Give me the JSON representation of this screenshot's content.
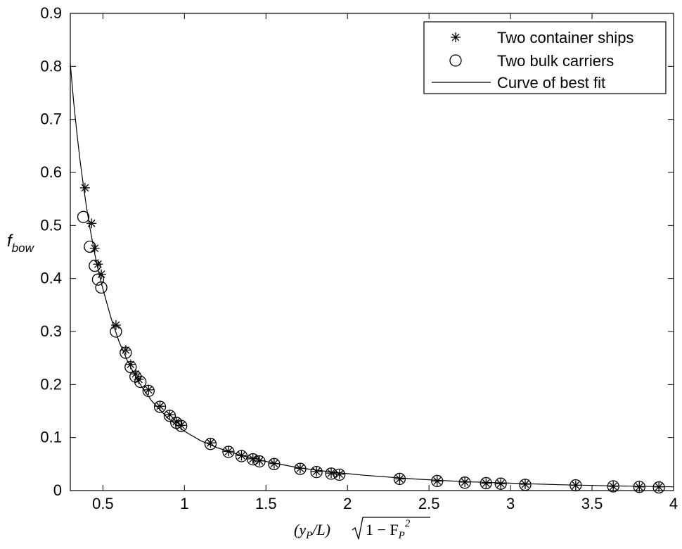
{
  "chart_data": {
    "type": "scatter",
    "title": "",
    "ylabel": {
      "main": "f",
      "sub": "bow"
    },
    "xlabel": {
      "open": "(y",
      "sub": "P",
      "mid": "/L)",
      "root_a": "1 − F",
      "root_sub": "P",
      "root_sup": "2"
    },
    "xlim": [
      0.3,
      4
    ],
    "ylim": [
      0,
      0.9
    ],
    "xticks": [
      0.5,
      1,
      1.5,
      2,
      2.5,
      3,
      3.5,
      4
    ],
    "xtick_labels": [
      "0.5",
      "1",
      "1.5",
      "2",
      "2.5",
      "3",
      "3.5",
      "4"
    ],
    "yticks": [
      0,
      0.1,
      0.2,
      0.3,
      0.4,
      0.5,
      0.6,
      0.7,
      0.8,
      0.9
    ],
    "ytick_labels": [
      "0",
      "0.1",
      "0.2",
      "0.3",
      "0.4",
      "0.5",
      "0.6",
      "0.7",
      "0.8",
      "0.9"
    ],
    "grid": false,
    "legend_position": "top-right",
    "series": [
      {
        "name": "Two container ships",
        "marker": "asterisk",
        "x": [
          0.39,
          0.43,
          0.45,
          0.47,
          0.49,
          0.58,
          0.64,
          0.67,
          0.7,
          0.72,
          0.78,
          0.85,
          0.91,
          0.95,
          0.98,
          1.16,
          1.27,
          1.35,
          1.42,
          1.46,
          1.55,
          1.71,
          1.81,
          1.9,
          1.95,
          2.32,
          2.55,
          2.72,
          2.85,
          2.94,
          3.09,
          3.4,
          3.63,
          3.79,
          3.91
        ],
        "y": [
          0.571,
          0.504,
          0.457,
          0.427,
          0.408,
          0.312,
          0.265,
          0.238,
          0.22,
          0.21,
          0.19,
          0.159,
          0.143,
          0.13,
          0.123,
          0.09,
          0.074,
          0.066,
          0.06,
          0.056,
          0.051,
          0.042,
          0.036,
          0.033,
          0.031,
          0.022,
          0.018,
          0.016,
          0.014,
          0.013,
          0.012,
          0.01,
          0.008,
          0.007,
          0.007
        ]
      },
      {
        "name": "Two bulk carriers",
        "marker": "circle",
        "x": [
          0.38,
          0.42,
          0.45,
          0.47,
          0.49,
          0.58,
          0.64,
          0.67,
          0.7,
          0.73,
          0.78,
          0.85,
          0.91,
          0.95,
          0.98,
          1.16,
          1.27,
          1.35,
          1.42,
          1.46,
          1.55,
          1.71,
          1.81,
          1.9,
          1.95,
          2.32,
          2.55,
          2.72,
          2.85,
          2.94,
          3.09,
          3.4,
          3.63,
          3.79,
          3.91
        ],
        "y": [
          0.516,
          0.46,
          0.424,
          0.398,
          0.383,
          0.3,
          0.26,
          0.233,
          0.215,
          0.205,
          0.188,
          0.158,
          0.141,
          0.128,
          0.122,
          0.088,
          0.073,
          0.065,
          0.059,
          0.055,
          0.05,
          0.041,
          0.035,
          0.032,
          0.03,
          0.022,
          0.018,
          0.015,
          0.014,
          0.013,
          0.011,
          0.01,
          0.008,
          0.007,
          0.006
        ]
      },
      {
        "name": "Curve of best fit",
        "marker": "line",
        "x": [
          0.3,
          0.32,
          0.34,
          0.36,
          0.38,
          0.4,
          0.42,
          0.45,
          0.48,
          0.5,
          0.55,
          0.6,
          0.65,
          0.7,
          0.75,
          0.8,
          0.9,
          1.0,
          1.1,
          1.2,
          1.35,
          1.5,
          1.7,
          1.9,
          2.1,
          2.4,
          2.7,
          3.0,
          3.3,
          3.6,
          4.0
        ],
        "y": [
          0.805,
          0.735,
          0.675,
          0.622,
          0.575,
          0.533,
          0.496,
          0.446,
          0.404,
          0.38,
          0.325,
          0.28,
          0.245,
          0.215,
          0.19,
          0.169,
          0.136,
          0.112,
          0.094,
          0.081,
          0.066,
          0.055,
          0.043,
          0.035,
          0.029,
          0.022,
          0.017,
          0.014,
          0.011,
          0.009,
          0.007
        ]
      }
    ]
  }
}
